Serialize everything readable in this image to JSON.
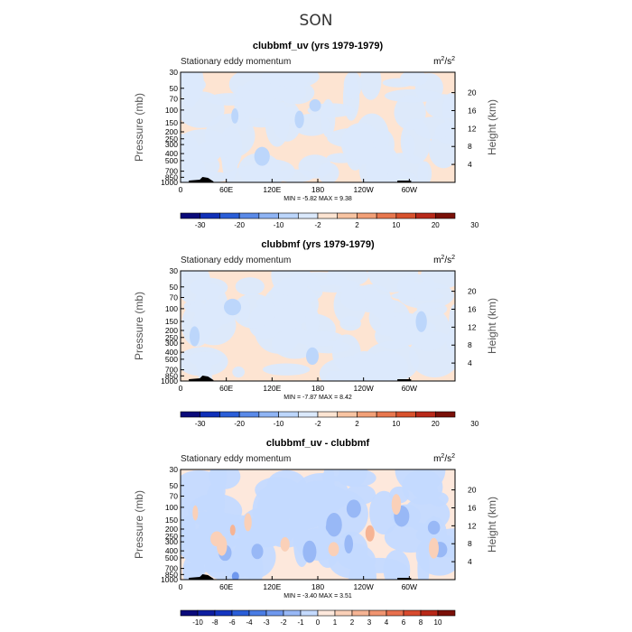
{
  "figure": {
    "suptitle": "SON"
  },
  "chart_data": [
    {
      "type": "heatmap",
      "title": "clubbmf_uv (yrs 1979-1979)",
      "left_label": "Stationary eddy momentum",
      "units": "m²/s²",
      "xlabel": "",
      "ylabel": "Pressure (mb)",
      "ylabel_right": "Height (km)",
      "x_ticks": [
        "0",
        "60E",
        "120E",
        "180",
        "120W",
        "60W"
      ],
      "y_ticks": [
        "30",
        "50",
        "70",
        "100",
        "150",
        "200",
        "250",
        "300",
        "400",
        "500",
        "700",
        "850",
        "1000"
      ],
      "y_ticks_right": [
        "4",
        "8",
        "12",
        "16",
        "20"
      ],
      "stats": {
        "min": -5.82,
        "max": 9.38,
        "text": "MIN =   -5.82   MAX =    9.38"
      },
      "colorbar": {
        "levels": [
          "-30",
          "-20",
          "-10",
          "-2",
          "2",
          "10",
          "20",
          "30"
        ],
        "colors": [
          "#0a0a7a",
          "#1030b8",
          "#2a5ed8",
          "#5a8ae8",
          "#8fb4f4",
          "#bcd6fb",
          "#dbe9fc",
          "#fde4d2",
          "#f8c4a2",
          "#f2a077",
          "#e8774e",
          "#d8522d",
          "#b8291a",
          "#7a1008"
        ]
      }
    },
    {
      "type": "heatmap",
      "title": "clubbmf (yrs 1979-1979)",
      "left_label": "Stationary eddy momentum",
      "units": "m²/s²",
      "xlabel": "",
      "ylabel": "Pressure (mb)",
      "ylabel_right": "Height (km)",
      "x_ticks": [
        "0",
        "60E",
        "120E",
        "180",
        "120W",
        "60W"
      ],
      "y_ticks": [
        "30",
        "50",
        "70",
        "100",
        "150",
        "200",
        "250",
        "300",
        "400",
        "500",
        "700",
        "850",
        "1000"
      ],
      "y_ticks_right": [
        "4",
        "8",
        "12",
        "16",
        "20"
      ],
      "stats": {
        "min": -7.87,
        "max": 8.42,
        "text": "MIN =   -7.87   MAX =    8.42"
      },
      "colorbar": {
        "levels": [
          "-30",
          "-20",
          "-10",
          "-2",
          "2",
          "10",
          "20",
          "30"
        ],
        "colors": [
          "#0a0a7a",
          "#1030b8",
          "#2a5ed8",
          "#5a8ae8",
          "#8fb4f4",
          "#bcd6fb",
          "#dbe9fc",
          "#fde4d2",
          "#f8c4a2",
          "#f2a077",
          "#e8774e",
          "#d8522d",
          "#b8291a",
          "#7a1008"
        ]
      }
    },
    {
      "type": "heatmap",
      "title": "clubbmf_uv - clubbmf",
      "left_label": "Stationary eddy momentum",
      "units": "m²/s²",
      "xlabel": "",
      "ylabel": "Pressure (mb)",
      "ylabel_right": "Height (km)",
      "x_ticks": [
        "0",
        "60E",
        "120E",
        "180",
        "120W",
        "60W"
      ],
      "y_ticks": [
        "30",
        "50",
        "70",
        "100",
        "150",
        "200",
        "250",
        "300",
        "400",
        "500",
        "700",
        "850",
        "1000"
      ],
      "y_ticks_right": [
        "4",
        "8",
        "12",
        "16",
        "20"
      ],
      "stats": {
        "min": -3.4,
        "max": 3.51,
        "text": "MIN =   -3.40   MAX =    3.51"
      },
      "colorbar": {
        "levels": [
          "-10",
          "-8",
          "-6",
          "-4",
          "-3",
          "-2",
          "-1",
          "0",
          "1",
          "2",
          "3",
          "4",
          "6",
          "8",
          "10"
        ],
        "colors": [
          "#0a0a7a",
          "#0e1ea0",
          "#1436c0",
          "#2a5ed8",
          "#4a7ce4",
          "#6f98ee",
          "#98b8f6",
          "#c4daff",
          "#fde8dc",
          "#fad0b8",
          "#f6b494",
          "#f09470",
          "#e8704e",
          "#d84a2e",
          "#b82818",
          "#7a1008"
        ]
      }
    }
  ]
}
